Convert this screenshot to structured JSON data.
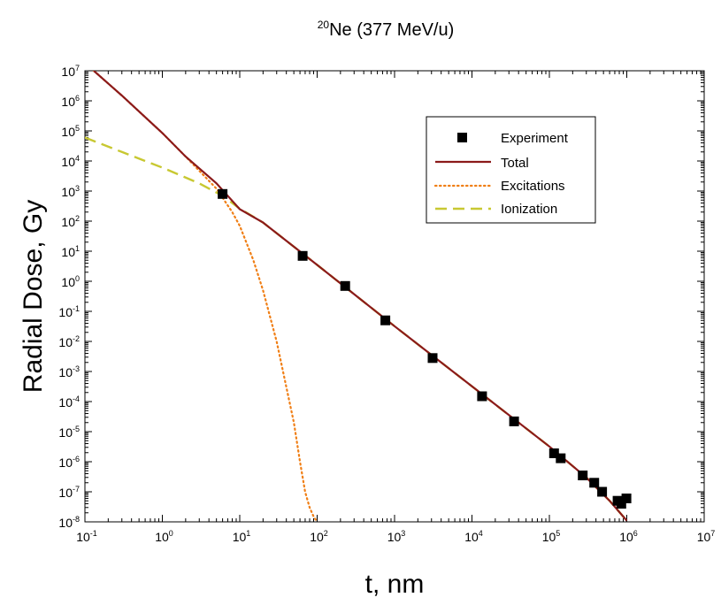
{
  "chart_data": {
    "type": "line",
    "title_prefix": "20",
    "title": "Ne (377 MeV/u)",
    "xlabel": "t, nm",
    "ylabel": "Radial Dose, Gy",
    "x_scale": "log",
    "y_scale": "log",
    "xlim": [
      0.1,
      10000000
    ],
    "ylim": [
      1e-08,
      10000000
    ],
    "x_ticks": [
      {
        "base": "10",
        "exp": "-1",
        "value": 0.1
      },
      {
        "base": "10",
        "exp": "0",
        "value": 1
      },
      {
        "base": "10",
        "exp": "1",
        "value": 10
      },
      {
        "base": "10",
        "exp": "2",
        "value": 100
      },
      {
        "base": "10",
        "exp": "3",
        "value": 1000
      },
      {
        "base": "10",
        "exp": "4",
        "value": 10000
      },
      {
        "base": "10",
        "exp": "5",
        "value": 100000
      },
      {
        "base": "10",
        "exp": "6",
        "value": 1000000
      },
      {
        "base": "10",
        "exp": "7",
        "value": 10000000
      }
    ],
    "y_ticks": [
      {
        "base": "10",
        "exp": "7",
        "value": 10000000
      },
      {
        "base": "10",
        "exp": "6",
        "value": 1000000
      },
      {
        "base": "10",
        "exp": "5",
        "value": 100000
      },
      {
        "base": "10",
        "exp": "4",
        "value": 10000
      },
      {
        "base": "10",
        "exp": "3",
        "value": 1000
      },
      {
        "base": "10",
        "exp": "2",
        "value": 100
      },
      {
        "base": "10",
        "exp": "1",
        "value": 10
      },
      {
        "base": "10",
        "exp": "0",
        "value": 1
      },
      {
        "base": "10",
        "exp": "-1",
        "value": 0.1
      },
      {
        "base": "10",
        "exp": "-2",
        "value": 0.01
      },
      {
        "base": "10",
        "exp": "-3",
        "value": 0.001
      },
      {
        "base": "10",
        "exp": "-4",
        "value": 0.0001
      },
      {
        "base": "10",
        "exp": "-5",
        "value": 1e-05
      },
      {
        "base": "10",
        "exp": "-6",
        "value": 1e-06
      },
      {
        "base": "10",
        "exp": "-7",
        "value": 1e-07
      },
      {
        "base": "10",
        "exp": "-8",
        "value": 1e-08
      }
    ],
    "legend": {
      "placement": "upper-right inside plot"
    },
    "series": [
      {
        "name": "Experiment",
        "style": "square-markers",
        "color": "#000000",
        "x": [
          6,
          65,
          230,
          760,
          3100,
          13500,
          35000,
          115000,
          140000,
          270000,
          380000,
          480000,
          760000,
          850000,
          990000
        ],
        "y": [
          800,
          7,
          0.7,
          0.05,
          0.0028,
          0.00015,
          2.2e-05,
          1.9e-06,
          1.3e-06,
          3.5e-07,
          2e-07,
          1e-07,
          5e-08,
          4e-08,
          6e-08
        ]
      },
      {
        "name": "Total",
        "style": "solid",
        "color": "#8b1a1a",
        "x": [
          0.13,
          0.3,
          1,
          2,
          5,
          10,
          20,
          100,
          1000,
          10000,
          100000,
          300000,
          600000,
          1000000
        ],
        "y": [
          10000000,
          1500000,
          85000,
          14000,
          1800,
          250,
          90,
          3.5,
          0.032,
          0.00032,
          3.2e-06,
          3e-07,
          5e-08,
          1.1e-08
        ]
      },
      {
        "name": "Excitations",
        "style": "dotted",
        "color": "#f07f16",
        "x": [
          0.13,
          0.3,
          1,
          2,
          5,
          8,
          10,
          15,
          20,
          30,
          40,
          50,
          60,
          70,
          80,
          90,
          100
        ],
        "y": [
          10000000,
          1500000,
          85000,
          14000,
          1200,
          200,
          70,
          5,
          0.5,
          0.01,
          0.0003,
          2e-05,
          1e-06,
          1e-07,
          3e-08,
          1.5e-08,
          1e-08
        ]
      },
      {
        "name": "Ionization",
        "style": "dashed",
        "color": "#c8c832",
        "x": [
          0.1,
          0.3,
          1,
          3,
          6,
          10,
          20,
          100,
          1000,
          10000,
          100000,
          300000,
          600000,
          1000000
        ],
        "y": [
          60000,
          20000,
          6000,
          1800,
          700,
          260,
          90,
          3.5,
          0.032,
          0.00032,
          3.2e-06,
          3e-07,
          5e-08,
          1.1e-08
        ]
      }
    ]
  }
}
